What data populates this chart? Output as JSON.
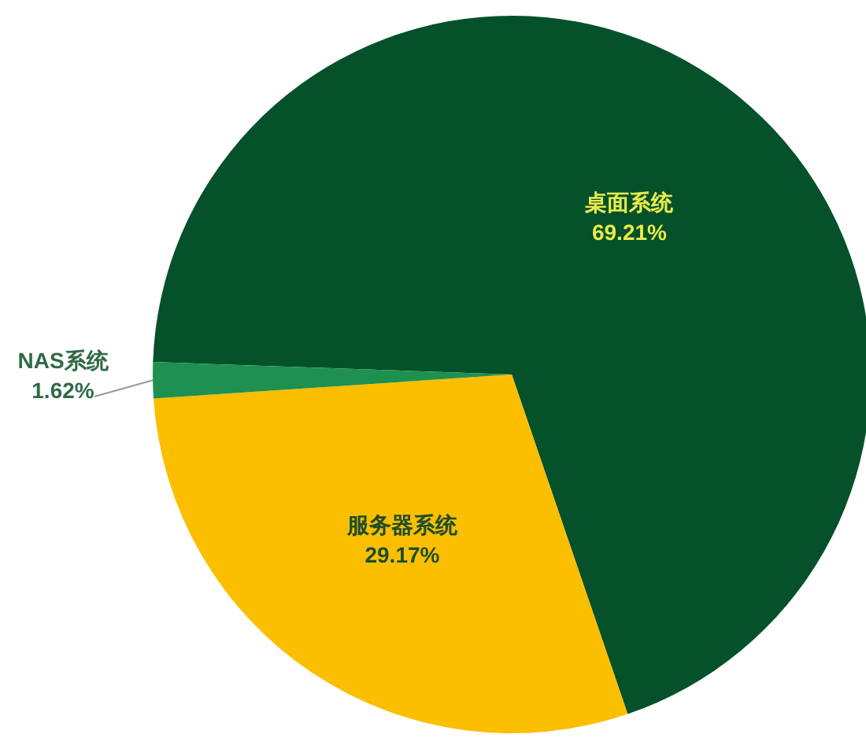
{
  "chart_data": {
    "type": "pie",
    "categories": [
      "桌面系统",
      "服务器系统",
      "NAS系统"
    ],
    "values": [
      69.21,
      29.17,
      1.62
    ],
    "colors": [
      "#04512a",
      "#fbbf00",
      "#1e9150"
    ],
    "value_labels": [
      "69.21%",
      "29.17%",
      "1.62%"
    ]
  }
}
